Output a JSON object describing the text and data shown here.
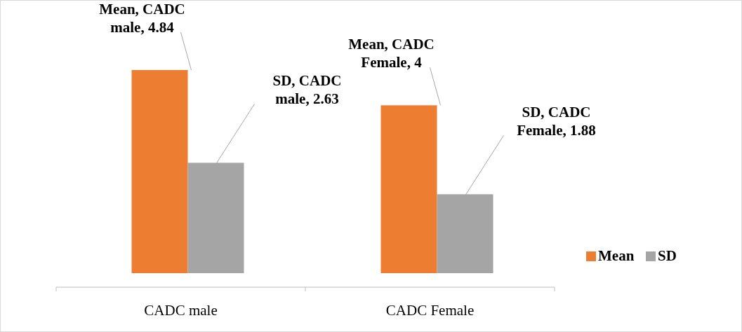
{
  "chart_data": {
    "type": "bar",
    "categories": [
      "CADC male",
      "CADC Female"
    ],
    "series": [
      {
        "name": "Mean",
        "color": "#ed7d31",
        "values": [
          4.84,
          4
        ],
        "value_labels": [
          "Mean, CADC male, 4.84",
          "Mean, CADC Female, 4"
        ]
      },
      {
        "name": "SD",
        "color": "#a5a5a5",
        "values": [
          2.63,
          1.88
        ],
        "value_labels": [
          "SD, CADC male, 2.63",
          "SD, CADC Female, 1.88"
        ]
      }
    ],
    "legend": "right"
  }
}
